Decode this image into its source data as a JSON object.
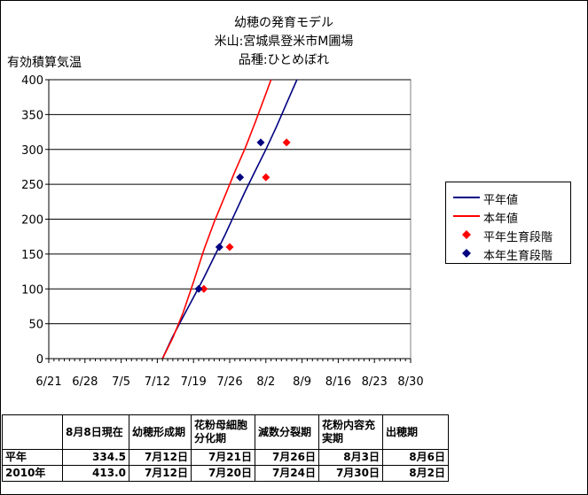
{
  "title_lines": [
    "幼穂の発育モデル",
    "米山:宮城県登米市M圃場",
    "品種:ひとめぼれ"
  ],
  "chart_data": {
    "type": "line",
    "title": "幼穂の発育モデル",
    "ylabel": "有効積算気温",
    "xlabel": "",
    "ylim": [
      0,
      400
    ],
    "yticks": [
      0,
      50,
      100,
      150,
      200,
      250,
      300,
      350,
      400
    ],
    "xlim": [
      "6/21",
      "8/30"
    ],
    "xticks": [
      "6/21",
      "6/28",
      "7/5",
      "7/12",
      "7/19",
      "7/26",
      "8/2",
      "8/9",
      "8/16",
      "8/23",
      "8/30"
    ],
    "grid": "horizontal",
    "legend_position": "right",
    "series": [
      {
        "name": "平年値",
        "kind": "line",
        "color": "#000080",
        "points": [
          [
            "7/13",
            0
          ],
          [
            "7/15",
            32
          ],
          [
            "7/17",
            60
          ],
          [
            "7/19",
            88
          ],
          [
            "7/21",
            116
          ],
          [
            "7/23",
            146
          ],
          [
            "7/25",
            176
          ],
          [
            "7/27",
            208
          ],
          [
            "7/29",
            240
          ],
          [
            "7/31",
            270
          ],
          [
            "8/2",
            300
          ],
          [
            "8/4",
            332
          ],
          [
            "8/6",
            366
          ],
          [
            "8/8",
            400
          ]
        ]
      },
      {
        "name": "本年値",
        "kind": "line",
        "color": "#ff0000",
        "points": [
          [
            "7/13",
            0
          ],
          [
            "7/15",
            30
          ],
          [
            "7/17",
            66
          ],
          [
            "7/19",
            110
          ],
          [
            "7/21",
            156
          ],
          [
            "7/23",
            196
          ],
          [
            "7/25",
            232
          ],
          [
            "7/27",
            268
          ],
          [
            "7/29",
            302
          ],
          [
            "7/31",
            340
          ],
          [
            "8/2",
            380
          ],
          [
            "8/3",
            400
          ]
        ]
      },
      {
        "name": "平年生育段階",
        "kind": "points",
        "color": "#ff0000",
        "points": [
          [
            "7/21",
            100
          ],
          [
            "7/26",
            160
          ],
          [
            "8/2",
            260
          ],
          [
            "8/6",
            310
          ]
        ]
      },
      {
        "name": "本年生育段階",
        "kind": "points",
        "color": "#000080",
        "points": [
          [
            "7/20",
            100
          ],
          [
            "7/24",
            160
          ],
          [
            "7/28",
            260
          ],
          [
            "8/1",
            310
          ]
        ]
      }
    ]
  },
  "table": {
    "headers": [
      "",
      "8月8日現在",
      "幼穂形成期",
      "花粉母細胞分化期",
      "減数分裂期",
      "花粉内容充実期",
      "出穂期"
    ],
    "rows": [
      [
        "平年",
        "334.5",
        "7月12日",
        "7月21日",
        "7月26日",
        "8月3日",
        "8月6日"
      ],
      [
        "2010年",
        "413.0",
        "7月12日",
        "7月20日",
        "7月24日",
        "7月30日",
        "8月2日"
      ]
    ]
  }
}
